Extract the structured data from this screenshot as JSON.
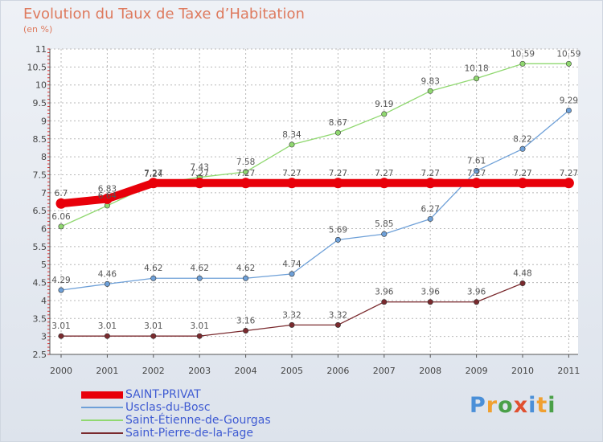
{
  "title": "Evolution du Taux de Taxe d’Habitation",
  "subtitle": "(en %)",
  "brand": {
    "text": "Proxiti",
    "letter_colors": [
      "#4a8fd8",
      "#f0a030",
      "#4aa048",
      "#e05030",
      "#4a8fd8",
      "#f0a030",
      "#4aa048"
    ]
  },
  "chart_data": {
    "type": "line",
    "x": [
      "2000",
      "2001",
      "2002",
      "2003",
      "2004",
      "2005",
      "2006",
      "2007",
      "2008",
      "2009",
      "2010",
      "2011"
    ],
    "ylim": [
      2.5,
      11
    ],
    "y_ticks": [
      "2.5",
      "3",
      "3.5",
      "4",
      "4.5",
      "5",
      "5.5",
      "6",
      "6.5",
      "7",
      "7.5",
      "8",
      "8.5",
      "9",
      "9.5",
      "10",
      "10.5",
      "11"
    ],
    "grid": true,
    "legend_position": "bottom-left",
    "series": [
      {
        "name": "SAINT-PRIVAT",
        "color": "#e8000a",
        "values": [
          6.7,
          6.83,
          7.27,
          7.27,
          7.27,
          7.27,
          7.27,
          7.27,
          7.27,
          7.27,
          7.27,
          7.27
        ],
        "labels": [
          "6.7",
          "6.83",
          "7.27",
          "7.27",
          "7.27",
          "7.27",
          "7.27",
          "7.27",
          "7.27",
          "7.27",
          "7.27",
          "7.27"
        ]
      },
      {
        "name": "Usclas-du-Bosc",
        "color": "#6ea0d8",
        "values": [
          4.29,
          4.46,
          4.62,
          4.62,
          4.62,
          4.74,
          5.69,
          5.85,
          6.27,
          7.61,
          8.22,
          9.29
        ],
        "labels": [
          "4.29",
          "4.46",
          "4.62",
          "4.62",
          "4.62",
          "4.74",
          "5.69",
          "5.85",
          "6.27",
          "7.61",
          "8.22",
          "9.29"
        ]
      },
      {
        "name": "Saint-Étienne-de-Gourgas",
        "color": "#90d870",
        "values": [
          6.06,
          6.64,
          7.24,
          7.43,
          7.58,
          8.34,
          8.67,
          9.19,
          9.83,
          10.18,
          10.59,
          10.59
        ],
        "labels": [
          "6.06",
          "6.64",
          "7.24",
          "7.43",
          "7.58",
          "8.34",
          "8.67",
          "9.19",
          "9.83",
          "10.18",
          "10.59",
          "10.59"
        ]
      },
      {
        "name": "Saint-Pierre-de-la-Fage",
        "color": "#7a2a2e",
        "values": [
          3.01,
          3.01,
          3.01,
          3.01,
          3.16,
          3.32,
          3.32,
          3.96,
          3.96,
          3.96,
          4.48,
          null
        ],
        "labels": [
          "3.01",
          "3.01",
          "3.01",
          "3.01",
          "3.16",
          "3.32",
          "3.32",
          "3.96",
          "3.96",
          "3.96",
          "4.48",
          null
        ]
      }
    ]
  }
}
